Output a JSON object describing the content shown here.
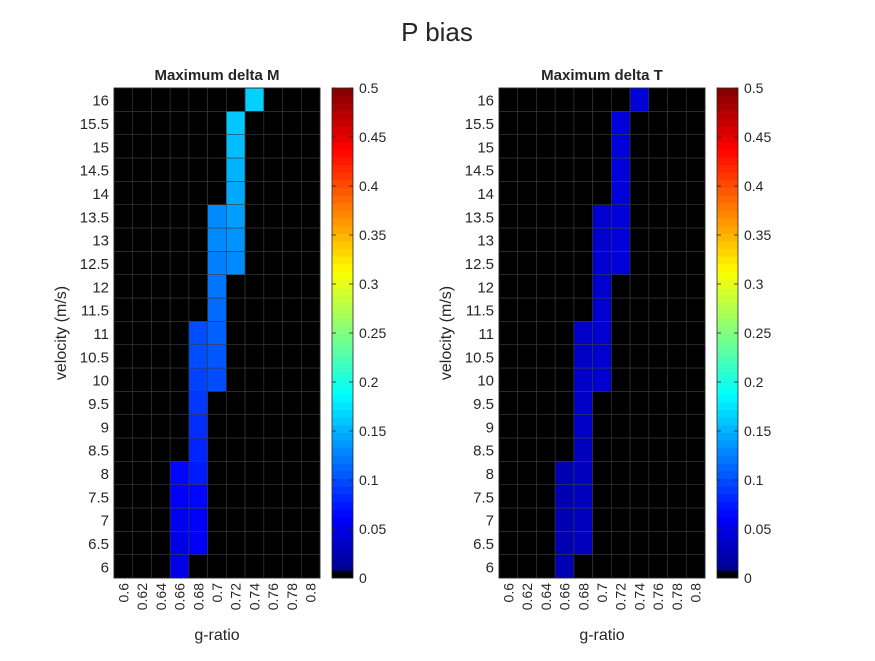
{
  "figure_title": "P bias",
  "chart_data": [
    {
      "type": "heatmap",
      "title": "Maximum delta M",
      "xlabel": "g-ratio",
      "ylabel": "velocity (m/s)",
      "x_categories": [
        "0.6",
        "0.62",
        "0.64",
        "0.66",
        "0.68",
        "0.7",
        "0.72",
        "0.74",
        "0.76",
        "0.78",
        "0.8"
      ],
      "y_categories": [
        "6",
        "6.5",
        "7",
        "7.5",
        "8",
        "8.5",
        "9",
        "9.5",
        "10",
        "10.5",
        "11",
        "11.5",
        "12",
        "12.5",
        "13",
        "13.5",
        "14",
        "14.5",
        "15",
        "15.5",
        "16"
      ],
      "colorbar": {
        "min": 0,
        "max": 0.5,
        "ticks": [
          "0",
          "0.05",
          "0.1",
          "0.15",
          "0.2",
          "0.25",
          "0.3",
          "0.35",
          "0.4",
          "0.45",
          "0.5"
        ],
        "colormap": "jet",
        "zero_color": "#000000"
      },
      "values": [
        [
          0,
          0,
          0,
          0.05,
          0,
          0,
          0,
          0,
          0,
          0,
          0
        ],
        [
          0,
          0,
          0,
          0.05,
          0.06,
          0,
          0,
          0,
          0,
          0,
          0
        ],
        [
          0,
          0,
          0,
          0.055,
          0.06,
          0,
          0,
          0,
          0,
          0,
          0
        ],
        [
          0,
          0,
          0,
          0.06,
          0.065,
          0,
          0,
          0,
          0,
          0,
          0
        ],
        [
          0,
          0,
          0,
          0.065,
          0.075,
          0,
          0,
          0,
          0,
          0,
          0
        ],
        [
          0,
          0,
          0,
          0,
          0.08,
          0,
          0,
          0,
          0,
          0,
          0
        ],
        [
          0,
          0,
          0,
          0,
          0.085,
          0,
          0,
          0,
          0,
          0,
          0
        ],
        [
          0,
          0,
          0,
          0,
          0.09,
          0,
          0,
          0,
          0,
          0,
          0
        ],
        [
          0,
          0,
          0,
          0,
          0.095,
          0.1,
          0,
          0,
          0,
          0,
          0
        ],
        [
          0,
          0,
          0,
          0,
          0.1,
          0.105,
          0,
          0,
          0,
          0,
          0
        ],
        [
          0,
          0,
          0,
          0,
          0.1,
          0.11,
          0,
          0,
          0,
          0,
          0
        ],
        [
          0,
          0,
          0,
          0,
          0,
          0.115,
          0,
          0,
          0,
          0,
          0
        ],
        [
          0,
          0,
          0,
          0,
          0,
          0.12,
          0,
          0,
          0,
          0,
          0
        ],
        [
          0,
          0,
          0,
          0,
          0,
          0.125,
          0.13,
          0,
          0,
          0,
          0
        ],
        [
          0,
          0,
          0,
          0,
          0,
          0.13,
          0.135,
          0,
          0,
          0,
          0
        ],
        [
          0,
          0,
          0,
          0,
          0,
          0.13,
          0.14,
          0,
          0,
          0,
          0
        ],
        [
          0,
          0,
          0,
          0,
          0,
          0,
          0.145,
          0,
          0,
          0,
          0
        ],
        [
          0,
          0,
          0,
          0,
          0,
          0,
          0.15,
          0,
          0,
          0,
          0
        ],
        [
          0,
          0,
          0,
          0,
          0,
          0,
          0.155,
          0,
          0,
          0,
          0
        ],
        [
          0,
          0,
          0,
          0,
          0,
          0,
          0.16,
          0,
          0,
          0,
          0
        ],
        [
          0,
          0,
          0,
          0,
          0,
          0,
          0,
          0.165,
          0,
          0,
          0
        ]
      ]
    },
    {
      "type": "heatmap",
      "title": "Maximum delta T",
      "xlabel": "g-ratio",
      "ylabel": "velocity (m/s)",
      "x_categories": [
        "0.6",
        "0.62",
        "0.64",
        "0.66",
        "0.68",
        "0.7",
        "0.72",
        "0.74",
        "0.76",
        "0.78",
        "0.8"
      ],
      "y_categories": [
        "6",
        "6.5",
        "7",
        "7.5",
        "8",
        "8.5",
        "9",
        "9.5",
        "10",
        "10.5",
        "11",
        "11.5",
        "12",
        "12.5",
        "13",
        "13.5",
        "14",
        "14.5",
        "15",
        "15.5",
        "16"
      ],
      "colorbar": {
        "min": 0,
        "max": 0.5,
        "ticks": [
          "0",
          "0.05",
          "0.1",
          "0.15",
          "0.2",
          "0.25",
          "0.3",
          "0.35",
          "0.4",
          "0.45",
          "0.5"
        ],
        "colormap": "jet",
        "zero_color": "#000000"
      },
      "values": [
        [
          0,
          0,
          0,
          0.025,
          0,
          0,
          0,
          0,
          0,
          0,
          0
        ],
        [
          0,
          0,
          0,
          0.025,
          0.03,
          0,
          0,
          0,
          0,
          0,
          0
        ],
        [
          0,
          0,
          0,
          0.025,
          0.03,
          0,
          0,
          0,
          0,
          0,
          0
        ],
        [
          0,
          0,
          0,
          0.025,
          0.03,
          0,
          0,
          0,
          0,
          0,
          0
        ],
        [
          0,
          0,
          0,
          0.025,
          0.03,
          0,
          0,
          0,
          0,
          0,
          0
        ],
        [
          0,
          0,
          0,
          0,
          0.03,
          0,
          0,
          0,
          0,
          0,
          0
        ],
        [
          0,
          0,
          0,
          0,
          0.035,
          0,
          0,
          0,
          0,
          0,
          0
        ],
        [
          0,
          0,
          0,
          0,
          0.035,
          0,
          0,
          0,
          0,
          0,
          0
        ],
        [
          0,
          0,
          0,
          0,
          0.035,
          0.04,
          0,
          0,
          0,
          0,
          0
        ],
        [
          0,
          0,
          0,
          0,
          0.035,
          0.04,
          0,
          0,
          0,
          0,
          0
        ],
        [
          0,
          0,
          0,
          0,
          0.035,
          0.04,
          0,
          0,
          0,
          0,
          0
        ],
        [
          0,
          0,
          0,
          0,
          0,
          0.04,
          0,
          0,
          0,
          0,
          0
        ],
        [
          0,
          0,
          0,
          0,
          0,
          0.04,
          0,
          0,
          0,
          0,
          0
        ],
        [
          0,
          0,
          0,
          0,
          0,
          0.04,
          0.045,
          0,
          0,
          0,
          0
        ],
        [
          0,
          0,
          0,
          0,
          0,
          0.04,
          0.045,
          0,
          0,
          0,
          0
        ],
        [
          0,
          0,
          0,
          0,
          0,
          0.04,
          0.045,
          0,
          0,
          0,
          0
        ],
        [
          0,
          0,
          0,
          0,
          0,
          0,
          0.045,
          0,
          0,
          0,
          0
        ],
        [
          0,
          0,
          0,
          0,
          0,
          0,
          0.045,
          0,
          0,
          0,
          0
        ],
        [
          0,
          0,
          0,
          0,
          0,
          0,
          0.045,
          0,
          0,
          0,
          0
        ],
        [
          0,
          0,
          0,
          0,
          0,
          0,
          0.045,
          0,
          0,
          0,
          0
        ],
        [
          0,
          0,
          0,
          0,
          0,
          0,
          0,
          0.045,
          0,
          0,
          0
        ]
      ]
    }
  ]
}
